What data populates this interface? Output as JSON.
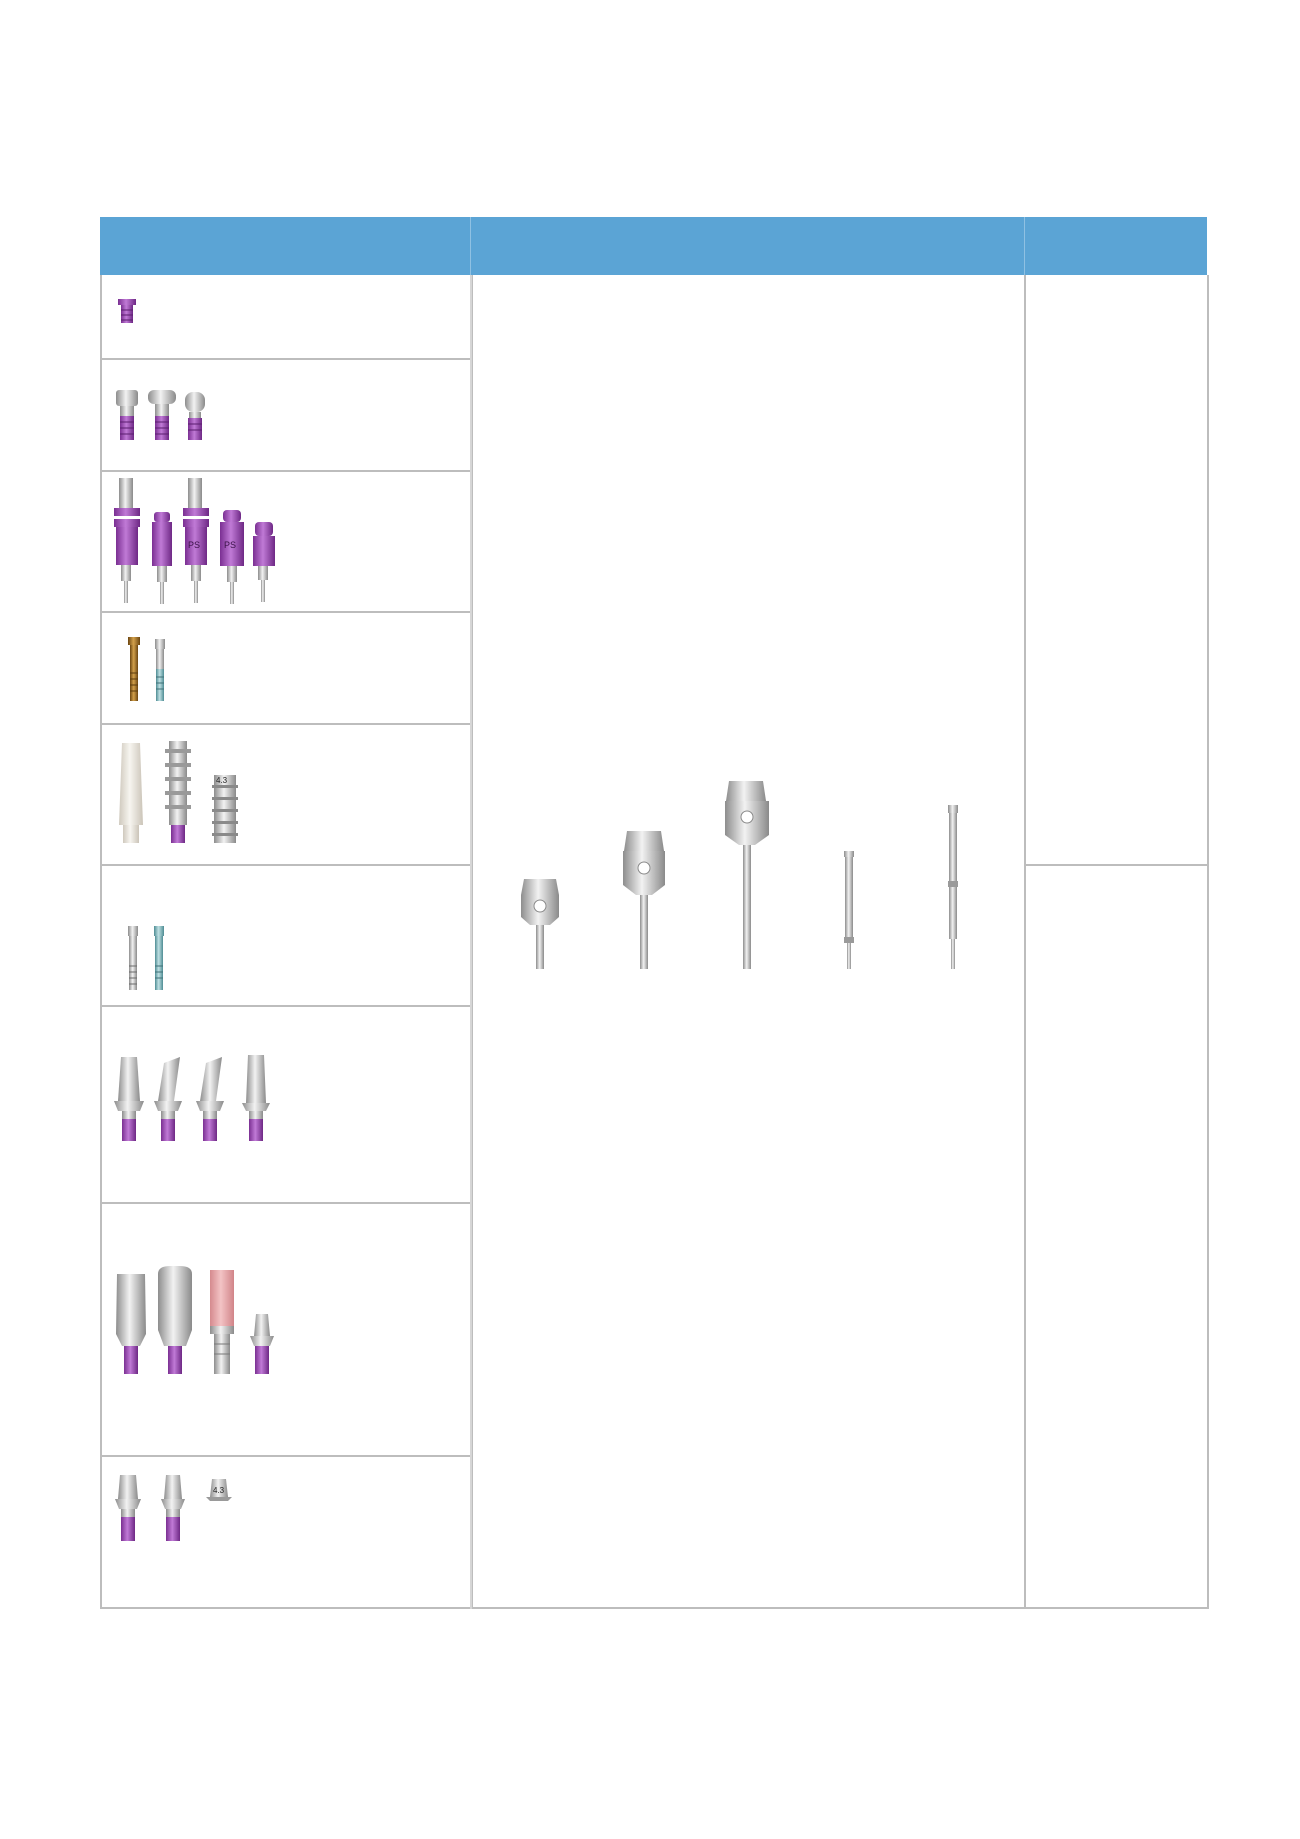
{
  "colors": {
    "header_fill": "#5ba4d5",
    "grid_line": "#bdbdbd",
    "titanium": "#c8c8c8",
    "anodized_purple": "#9b4fb4",
    "gold": "#a87620",
    "teal": "#7fb2b8",
    "peek_white": "#ece8e0",
    "pink_sleeve": "#e6a3a6"
  },
  "table": {
    "header": {
      "columns": [
        "",
        "",
        ""
      ]
    },
    "rows": [
      {
        "id": "row-1",
        "icon": "cover-screw-icon",
        "count": 1
      },
      {
        "id": "row-2",
        "icon": "healing-abutment-icon",
        "count": 3
      },
      {
        "id": "row-3",
        "icon": "impression-coping-icon",
        "count": 5,
        "labels": [
          "PS",
          "PS"
        ]
      },
      {
        "id": "row-4",
        "icon": "abutment-screw-icon",
        "count": 2
      },
      {
        "id": "row-5",
        "icon": "temporary-abutment-icon",
        "count": 3,
        "labels": [
          "4.3"
        ]
      },
      {
        "id": "row-6",
        "icon": "lab-screw-icon",
        "count": 2
      },
      {
        "id": "row-7",
        "icon": "angled-abutment-icon",
        "count": 4
      },
      {
        "id": "row-8",
        "icon": "cementable-abutment-icon",
        "count": 4
      },
      {
        "id": "row-9",
        "icon": "base-abutment-icon",
        "count": 3,
        "labels": [
          "4.3"
        ]
      }
    ],
    "middle": {
      "icon": "driver-tools-icon",
      "count": 5
    }
  }
}
